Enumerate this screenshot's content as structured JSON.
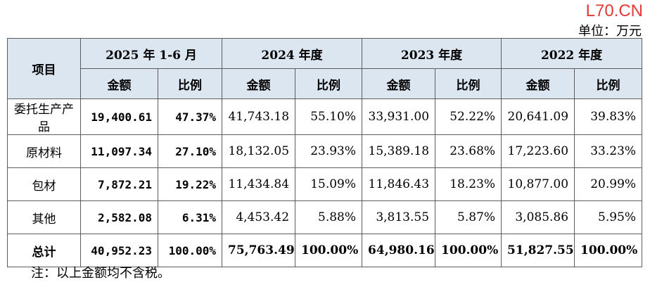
{
  "watermark": "L70.CN",
  "unit": "单位：万元",
  "header": {
    "item": "项目",
    "periods": [
      "2025 年 1-6 月",
      "2024 年度",
      "2023 年度",
      "2022 年度"
    ],
    "amount": "金额",
    "ratio": "比例"
  },
  "rows": [
    {
      "label": "委托生产产品",
      "values": [
        "19,400.61",
        "47.37%",
        "41,743.18",
        "55.10%",
        "33,931.00",
        "52.22%",
        "20,641.09",
        "39.83%"
      ]
    },
    {
      "label": "原材料",
      "values": [
        "11,097.34",
        "27.10%",
        "18,132.05",
        "23.93%",
        "15,389.18",
        "23.68%",
        "17,223.60",
        "33.23%"
      ]
    },
    {
      "label": "包材",
      "values": [
        "7,872.21",
        "19.22%",
        "11,434.84",
        "15.09%",
        "11,846.43",
        "18.23%",
        "10,877.00",
        "20.99%"
      ]
    },
    {
      "label": "其他",
      "values": [
        "2,582.08",
        "6.31%",
        "4,453.42",
        "5.88%",
        "3,813.55",
        "5.87%",
        "3,085.86",
        "5.95%"
      ]
    }
  ],
  "total": {
    "label": "总计",
    "values": [
      "40,952.23",
      "100.00%",
      "75,763.49",
      "100.00%",
      "64,980.16",
      "100.00%",
      "51,827.55",
      "100.00%"
    ]
  },
  "note": "注：以上金额均不含税。"
}
